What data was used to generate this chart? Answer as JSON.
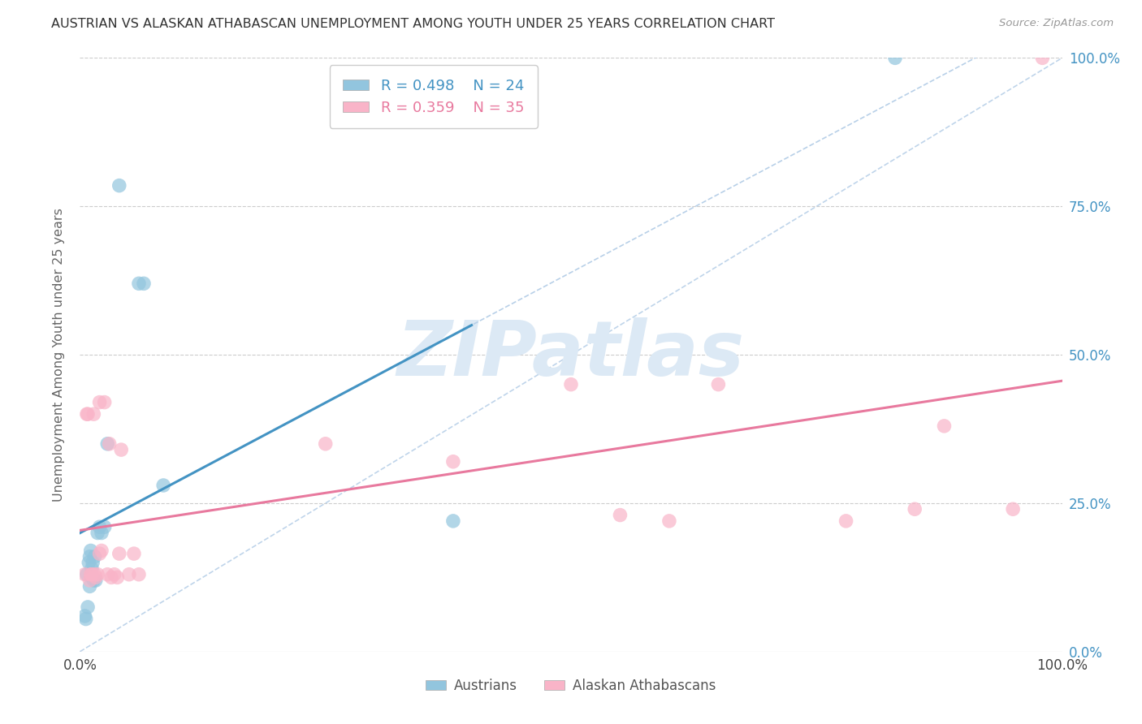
{
  "title": "AUSTRIAN VS ALASKAN ATHABASCAN UNEMPLOYMENT AMONG YOUTH UNDER 25 YEARS CORRELATION CHART",
  "source": "Source: ZipAtlas.com",
  "ylabel": "Unemployment Among Youth under 25 years",
  "austrians_R": 0.498,
  "austrians_N": 24,
  "athabascans_R": 0.359,
  "athabascans_N": 35,
  "blue_scatter_color": "#92c5de",
  "pink_scatter_color": "#f9b4c8",
  "blue_line_color": "#4393c3",
  "pink_line_color": "#e8799e",
  "dashed_line_color": "#b8d0e8",
  "grid_color": "#cccccc",
  "watermark_text": "ZIPatlas",
  "watermark_color": "#dce9f5",
  "background_color": "#ffffff",
  "aus_x": [
    0.005,
    0.006,
    0.007,
    0.008,
    0.009,
    0.01,
    0.01,
    0.011,
    0.012,
    0.013,
    0.014,
    0.015,
    0.016,
    0.018,
    0.02,
    0.022,
    0.025,
    0.028,
    0.04,
    0.06,
    0.065,
    0.085,
    0.38,
    0.83
  ],
  "aus_y": [
    0.06,
    0.055,
    0.13,
    0.075,
    0.15,
    0.16,
    0.11,
    0.17,
    0.14,
    0.15,
    0.12,
    0.16,
    0.12,
    0.2,
    0.21,
    0.2,
    0.21,
    0.35,
    0.785,
    0.62,
    0.62,
    0.28,
    0.22,
    1.0
  ],
  "ath_x": [
    0.005,
    0.007,
    0.008,
    0.01,
    0.011,
    0.012,
    0.014,
    0.015,
    0.016,
    0.018,
    0.02,
    0.02,
    0.022,
    0.025,
    0.028,
    0.03,
    0.032,
    0.035,
    0.038,
    0.04,
    0.042,
    0.05,
    0.055,
    0.06,
    0.25,
    0.38,
    0.5,
    0.55,
    0.6,
    0.65,
    0.78,
    0.85,
    0.88,
    0.95,
    0.98
  ],
  "ath_y": [
    0.13,
    0.4,
    0.4,
    0.12,
    0.13,
    0.13,
    0.4,
    0.13,
    0.125,
    0.13,
    0.42,
    0.165,
    0.17,
    0.42,
    0.13,
    0.35,
    0.125,
    0.13,
    0.125,
    0.165,
    0.34,
    0.13,
    0.165,
    0.13,
    0.35,
    0.32,
    0.45,
    0.23,
    0.22,
    0.45,
    0.22,
    0.24,
    0.38,
    0.24,
    1.0
  ],
  "xlim": [
    0,
    1
  ],
  "ylim": [
    0,
    1
  ],
  "yticks": [
    0.0,
    0.25,
    0.5,
    0.75,
    1.0
  ],
  "right_ytick_labels": [
    "0.0%",
    "25.0%",
    "50.0%",
    "75.0%",
    "100.0%"
  ],
  "xticks": [
    0,
    1
  ],
  "xtick_labels": [
    "0.0%",
    "100.0%"
  ]
}
